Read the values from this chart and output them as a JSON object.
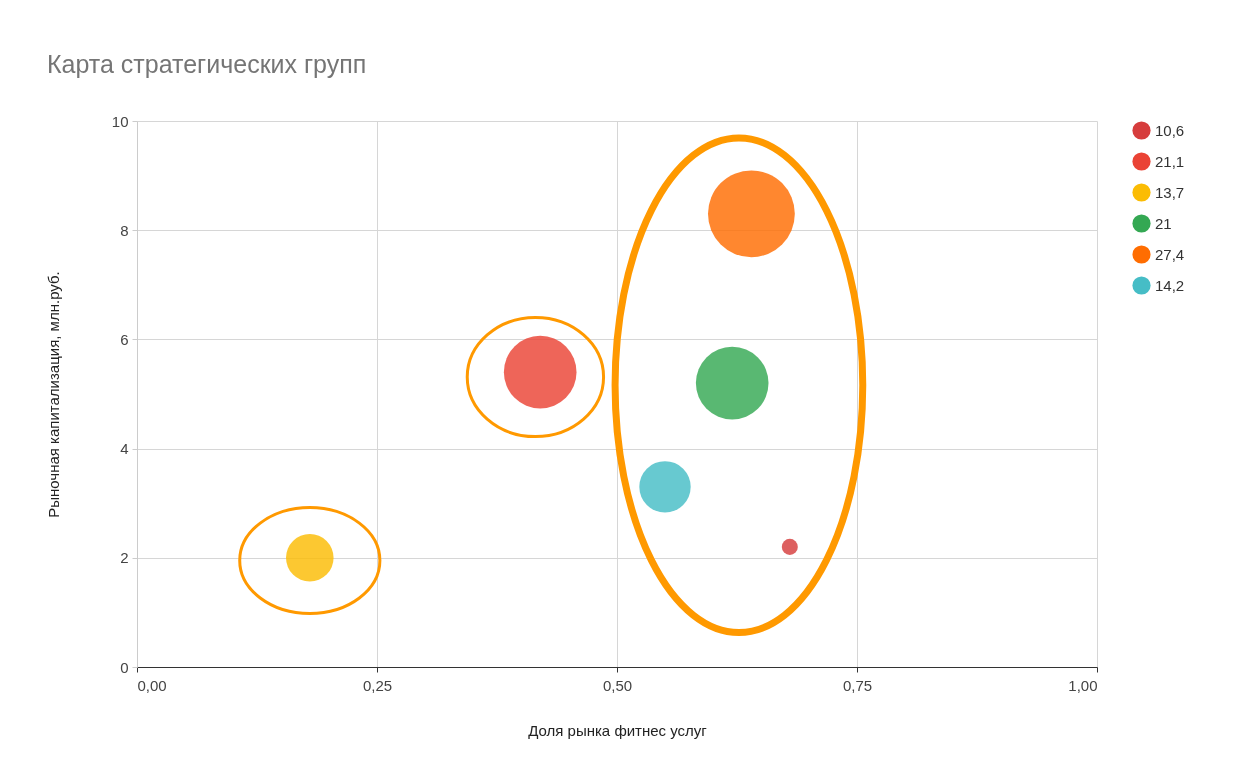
{
  "chart_data": {
    "type": "bubble",
    "title": "Карта стратегических групп",
    "xlabel": "Доля рынка фитнес услуг",
    "ylabel": "Рыночная капитализация, млн.руб.",
    "xlim": [
      0,
      1
    ],
    "xticks": [
      {
        "value": 0,
        "label": "0,00"
      },
      {
        "value": 0.25,
        "label": "0,25"
      },
      {
        "value": 0.5,
        "label": "0,50"
      },
      {
        "value": 0.75,
        "label": "0,75"
      },
      {
        "value": 1,
        "label": "1,00"
      }
    ],
    "ylim": [
      0,
      10
    ],
    "yticks": [
      0,
      2,
      4,
      6,
      8,
      10
    ],
    "grid": true,
    "legend": "right",
    "series": [
      {
        "name": "10,6",
        "color": "#d63d3d",
        "x": [
          0.68
        ],
        "values": [
          2.2
        ],
        "sizes": [
          0.034
        ]
      },
      {
        "name": "21,1",
        "color": "#ea4335",
        "x": [
          0.42
        ],
        "values": [
          5.4
        ],
        "sizes": [
          0.7
        ]
      },
      {
        "name": "13,7",
        "color": "#fbbc04",
        "x": [
          0.18
        ],
        "values": [
          2.0
        ],
        "sizes": [
          0.3
        ]
      },
      {
        "name": "21",
        "color": "#34a853",
        "x": [
          0.62
        ],
        "values": [
          5.2
        ],
        "sizes": [
          0.7
        ]
      },
      {
        "name": "27,4",
        "color": "#ff6d01",
        "x": [
          0.64
        ],
        "values": [
          8.3
        ],
        "sizes": [
          1
        ]
      },
      {
        "name": "14,2",
        "color": "#46bdc6",
        "x": [
          0.55
        ],
        "values": [
          3.3
        ],
        "sizes": [
          0.35
        ]
      }
    ]
  }
}
